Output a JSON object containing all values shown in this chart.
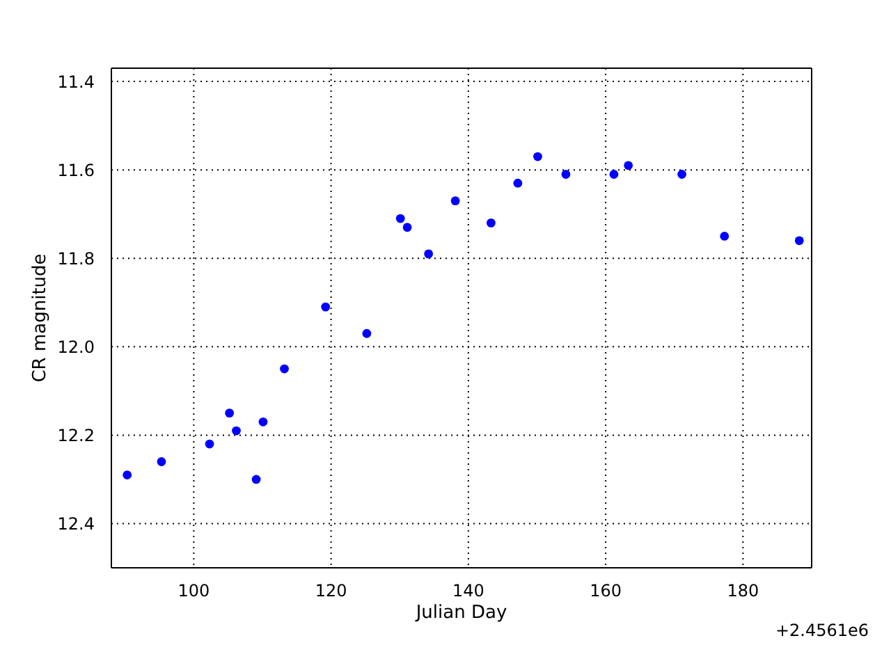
{
  "chart_data": {
    "type": "scatter",
    "xlabel": "Julian Day",
    "ylabel": "CR magnitude",
    "annotations": [
      "+2.4561e6"
    ],
    "x": [
      90.3,
      95.3,
      102.3,
      105.2,
      106.2,
      109.1,
      110.1,
      113.2,
      119.2,
      125.2,
      130.1,
      131.1,
      134.2,
      138.1,
      143.3,
      147.2,
      150.1,
      154.2,
      161.2,
      163.3,
      171.1,
      177.3,
      188.2
    ],
    "series": [
      {
        "color": "#0000ff",
        "values": [
          12.29,
          12.26,
          12.22,
          12.15,
          12.19,
          12.3,
          12.17,
          12.05,
          11.91,
          11.97,
          11.71,
          11.73,
          11.79,
          11.67,
          11.72,
          11.63,
          11.57,
          11.61,
          11.61,
          11.59,
          11.61,
          11.75,
          11.76
        ]
      }
    ],
    "xlim": [
      88,
      190
    ],
    "xticks": [
      100,
      120,
      140,
      160,
      180
    ],
    "ylim": [
      12.5,
      11.37
    ],
    "yticks": [
      11.4,
      11.6,
      11.8,
      {
        "value": 12,
        "label": "12.0"
      },
      12.2,
      12.4
    ],
    "grid": true,
    "marker": "circle",
    "legend": false
  }
}
